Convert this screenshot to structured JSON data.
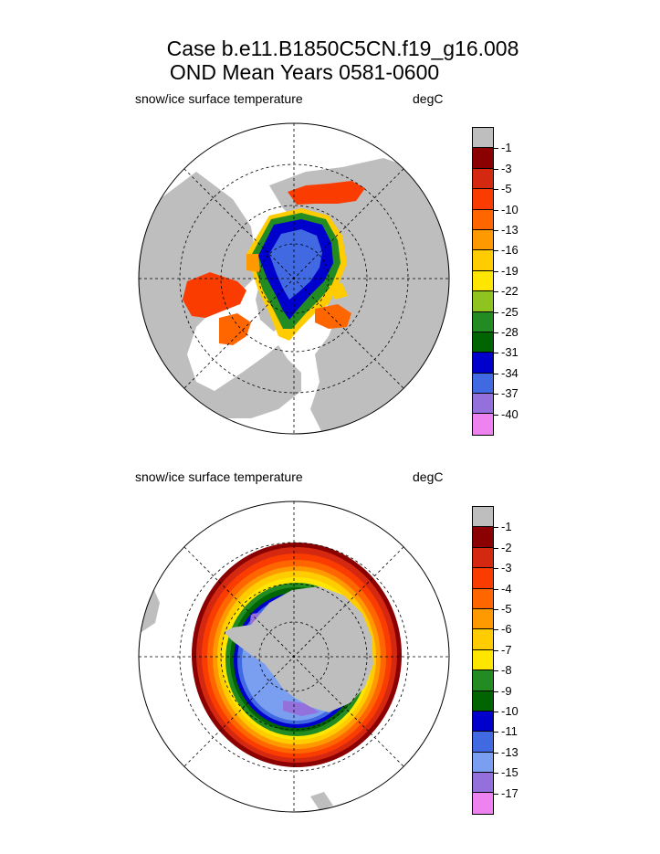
{
  "title": {
    "line1": "Case b.e11.B1850C5CN.f19_g16.008",
    "line2": "OND Mean   Years 0581-0600"
  },
  "panels": [
    {
      "id": "north",
      "variable_label": "snow/ice surface temperature",
      "units_label": "degC",
      "colorbar": {
        "labels": [
          "-1",
          "-3",
          "-5",
          "-10",
          "-13",
          "-16",
          "-19",
          "-22",
          "-25",
          "-28",
          "-31",
          "-34",
          "-37",
          "-40"
        ],
        "colors": [
          "#bebebe",
          "#8b0000",
          "#d42811",
          "#fa3c00",
          "#ff6600",
          "#ff9900",
          "#ffcc00",
          "#ffe600",
          "#8fc31f",
          "#228b22",
          "#006400",
          "#0000cd",
          "#4169e1",
          "#9370db",
          "#ee82ee"
        ]
      }
    },
    {
      "id": "south",
      "variable_label": "snow/ice surface temperature",
      "units_label": "degC",
      "colorbar": {
        "labels": [
          "-1",
          "-2",
          "-3",
          "-4",
          "-5",
          "-6",
          "-7",
          "-8",
          "-9",
          "-10",
          "-11",
          "-13",
          "-15",
          "-17"
        ],
        "colors": [
          "#bebebe",
          "#8b0000",
          "#d42811",
          "#fa3c00",
          "#ff6600",
          "#ff9900",
          "#ffcc00",
          "#ffe600",
          "#228b22",
          "#006400",
          "#0000cd",
          "#4169e1",
          "#7b9ff0",
          "#9370db",
          "#ee82ee"
        ]
      }
    }
  ],
  "map_colors": {
    "land": "#bebebe",
    "ocean": "#ffffff"
  }
}
